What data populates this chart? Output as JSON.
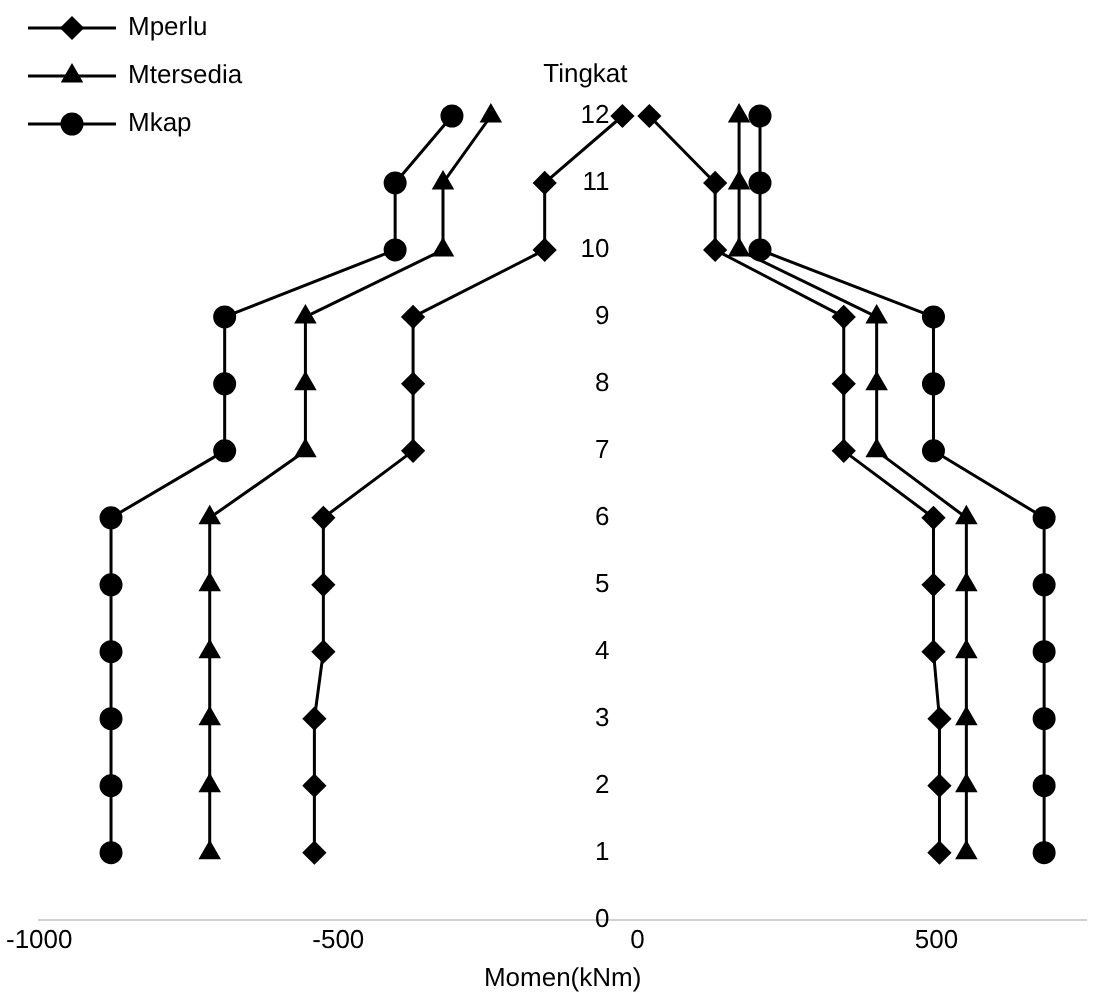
{
  "chart_data": {
    "type": "line",
    "ylabel": "Tingkat",
    "xlabel": "Momen(kNm)",
    "xlim": [
      -1000,
      750
    ],
    "xticks": [
      -1000,
      -500,
      0,
      500
    ],
    "ylim": [
      0,
      12
    ],
    "yticks": [
      0,
      1,
      2,
      3,
      4,
      5,
      6,
      7,
      8,
      9,
      10,
      11,
      12
    ],
    "grid": false,
    "legend": "top left",
    "line_style": "solid",
    "series": [
      {
        "name": "Mperlu",
        "color": "#000000",
        "marker": "diamond",
        "x": [
          -540,
          -540,
          -540,
          -525,
          -525,
          -525,
          -375,
          -375,
          -375,
          -155,
          -155,
          -25
        ],
        "values": [
          1,
          2,
          3,
          4,
          5,
          6,
          7,
          8,
          9,
          10,
          11,
          12
        ]
      },
      {
        "name": "Mtersedia",
        "color": "#000000",
        "marker": "triangle",
        "x": [
          -715,
          -715,
          -715,
          -715,
          -715,
          -715,
          -555,
          -555,
          -555,
          -325,
          -325,
          -245
        ],
        "values": [
          1,
          2,
          3,
          4,
          5,
          6,
          7,
          8,
          9,
          10,
          11,
          12
        ]
      },
      {
        "name": "Mkap",
        "color": "#000000",
        "marker": "circle",
        "x": [
          -880,
          -880,
          -880,
          -880,
          -880,
          -880,
          -690,
          -690,
          -690,
          -405,
          -405,
          -310
        ],
        "values": [
          1,
          2,
          3,
          4,
          5,
          6,
          7,
          8,
          9,
          10,
          11,
          12
        ]
      },
      {
        "color": "#000000",
        "marker": "diamond",
        "x": [
          505,
          505,
          505,
          495,
          495,
          495,
          345,
          345,
          345,
          130,
          130,
          20
        ],
        "values": [
          1,
          2,
          3,
          4,
          5,
          6,
          7,
          8,
          9,
          10,
          11,
          12
        ]
      },
      {
        "color": "#000000",
        "marker": "triangle",
        "x": [
          550,
          550,
          550,
          550,
          550,
          550,
          400,
          400,
          400,
          170,
          170,
          170
        ],
        "values": [
          1,
          2,
          3,
          4,
          5,
          6,
          7,
          8,
          9,
          10,
          11,
          12
        ]
      },
      {
        "color": "#000000",
        "marker": "circle",
        "x": [
          680,
          680,
          680,
          680,
          680,
          680,
          495,
          495,
          495,
          205,
          205,
          205
        ],
        "values": [
          1,
          2,
          3,
          4,
          5,
          6,
          7,
          8,
          9,
          10,
          11,
          12
        ]
      }
    ]
  }
}
